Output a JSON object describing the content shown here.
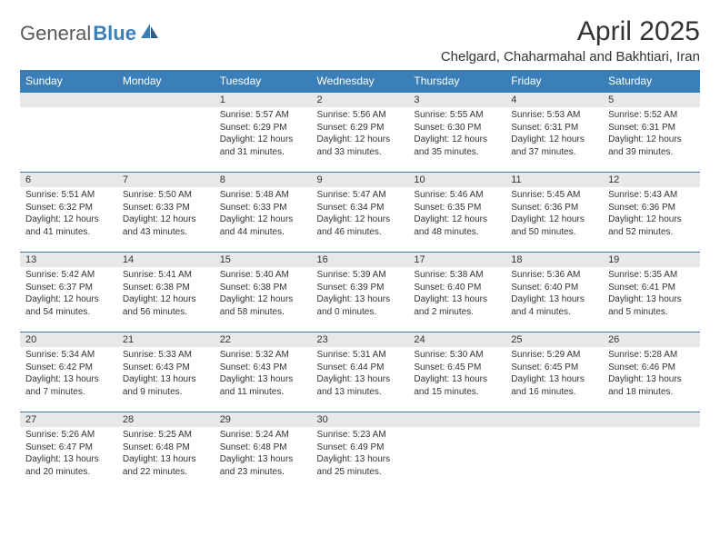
{
  "logo": {
    "part1": "General",
    "part2": "Blue"
  },
  "title": "April 2025",
  "location": "Chelgard, Chaharmahal and Bakhtiari, Iran",
  "colors": {
    "header_bg": "#3b7fb8",
    "header_text": "#ffffff",
    "daynum_bg": "#e8e8e8",
    "border": "#3b7fb8",
    "text": "#333333",
    "logo_gray": "#5a5a5a",
    "logo_blue": "#3b7fb8"
  },
  "day_headers": [
    "Sunday",
    "Monday",
    "Tuesday",
    "Wednesday",
    "Thursday",
    "Friday",
    "Saturday"
  ],
  "weeks": [
    [
      null,
      null,
      {
        "n": "1",
        "sr": "Sunrise: 5:57 AM",
        "ss": "Sunset: 6:29 PM",
        "d1": "Daylight: 12 hours",
        "d2": "and 31 minutes."
      },
      {
        "n": "2",
        "sr": "Sunrise: 5:56 AM",
        "ss": "Sunset: 6:29 PM",
        "d1": "Daylight: 12 hours",
        "d2": "and 33 minutes."
      },
      {
        "n": "3",
        "sr": "Sunrise: 5:55 AM",
        "ss": "Sunset: 6:30 PM",
        "d1": "Daylight: 12 hours",
        "d2": "and 35 minutes."
      },
      {
        "n": "4",
        "sr": "Sunrise: 5:53 AM",
        "ss": "Sunset: 6:31 PM",
        "d1": "Daylight: 12 hours",
        "d2": "and 37 minutes."
      },
      {
        "n": "5",
        "sr": "Sunrise: 5:52 AM",
        "ss": "Sunset: 6:31 PM",
        "d1": "Daylight: 12 hours",
        "d2": "and 39 minutes."
      }
    ],
    [
      {
        "n": "6",
        "sr": "Sunrise: 5:51 AM",
        "ss": "Sunset: 6:32 PM",
        "d1": "Daylight: 12 hours",
        "d2": "and 41 minutes."
      },
      {
        "n": "7",
        "sr": "Sunrise: 5:50 AM",
        "ss": "Sunset: 6:33 PM",
        "d1": "Daylight: 12 hours",
        "d2": "and 43 minutes."
      },
      {
        "n": "8",
        "sr": "Sunrise: 5:48 AM",
        "ss": "Sunset: 6:33 PM",
        "d1": "Daylight: 12 hours",
        "d2": "and 44 minutes."
      },
      {
        "n": "9",
        "sr": "Sunrise: 5:47 AM",
        "ss": "Sunset: 6:34 PM",
        "d1": "Daylight: 12 hours",
        "d2": "and 46 minutes."
      },
      {
        "n": "10",
        "sr": "Sunrise: 5:46 AM",
        "ss": "Sunset: 6:35 PM",
        "d1": "Daylight: 12 hours",
        "d2": "and 48 minutes."
      },
      {
        "n": "11",
        "sr": "Sunrise: 5:45 AM",
        "ss": "Sunset: 6:36 PM",
        "d1": "Daylight: 12 hours",
        "d2": "and 50 minutes."
      },
      {
        "n": "12",
        "sr": "Sunrise: 5:43 AM",
        "ss": "Sunset: 6:36 PM",
        "d1": "Daylight: 12 hours",
        "d2": "and 52 minutes."
      }
    ],
    [
      {
        "n": "13",
        "sr": "Sunrise: 5:42 AM",
        "ss": "Sunset: 6:37 PM",
        "d1": "Daylight: 12 hours",
        "d2": "and 54 minutes."
      },
      {
        "n": "14",
        "sr": "Sunrise: 5:41 AM",
        "ss": "Sunset: 6:38 PM",
        "d1": "Daylight: 12 hours",
        "d2": "and 56 minutes."
      },
      {
        "n": "15",
        "sr": "Sunrise: 5:40 AM",
        "ss": "Sunset: 6:38 PM",
        "d1": "Daylight: 12 hours",
        "d2": "and 58 minutes."
      },
      {
        "n": "16",
        "sr": "Sunrise: 5:39 AM",
        "ss": "Sunset: 6:39 PM",
        "d1": "Daylight: 13 hours",
        "d2": "and 0 minutes."
      },
      {
        "n": "17",
        "sr": "Sunrise: 5:38 AM",
        "ss": "Sunset: 6:40 PM",
        "d1": "Daylight: 13 hours",
        "d2": "and 2 minutes."
      },
      {
        "n": "18",
        "sr": "Sunrise: 5:36 AM",
        "ss": "Sunset: 6:40 PM",
        "d1": "Daylight: 13 hours",
        "d2": "and 4 minutes."
      },
      {
        "n": "19",
        "sr": "Sunrise: 5:35 AM",
        "ss": "Sunset: 6:41 PM",
        "d1": "Daylight: 13 hours",
        "d2": "and 5 minutes."
      }
    ],
    [
      {
        "n": "20",
        "sr": "Sunrise: 5:34 AM",
        "ss": "Sunset: 6:42 PM",
        "d1": "Daylight: 13 hours",
        "d2": "and 7 minutes."
      },
      {
        "n": "21",
        "sr": "Sunrise: 5:33 AM",
        "ss": "Sunset: 6:43 PM",
        "d1": "Daylight: 13 hours",
        "d2": "and 9 minutes."
      },
      {
        "n": "22",
        "sr": "Sunrise: 5:32 AM",
        "ss": "Sunset: 6:43 PM",
        "d1": "Daylight: 13 hours",
        "d2": "and 11 minutes."
      },
      {
        "n": "23",
        "sr": "Sunrise: 5:31 AM",
        "ss": "Sunset: 6:44 PM",
        "d1": "Daylight: 13 hours",
        "d2": "and 13 minutes."
      },
      {
        "n": "24",
        "sr": "Sunrise: 5:30 AM",
        "ss": "Sunset: 6:45 PM",
        "d1": "Daylight: 13 hours",
        "d2": "and 15 minutes."
      },
      {
        "n": "25",
        "sr": "Sunrise: 5:29 AM",
        "ss": "Sunset: 6:45 PM",
        "d1": "Daylight: 13 hours",
        "d2": "and 16 minutes."
      },
      {
        "n": "26",
        "sr": "Sunrise: 5:28 AM",
        "ss": "Sunset: 6:46 PM",
        "d1": "Daylight: 13 hours",
        "d2": "and 18 minutes."
      }
    ],
    [
      {
        "n": "27",
        "sr": "Sunrise: 5:26 AM",
        "ss": "Sunset: 6:47 PM",
        "d1": "Daylight: 13 hours",
        "d2": "and 20 minutes."
      },
      {
        "n": "28",
        "sr": "Sunrise: 5:25 AM",
        "ss": "Sunset: 6:48 PM",
        "d1": "Daylight: 13 hours",
        "d2": "and 22 minutes."
      },
      {
        "n": "29",
        "sr": "Sunrise: 5:24 AM",
        "ss": "Sunset: 6:48 PM",
        "d1": "Daylight: 13 hours",
        "d2": "and 23 minutes."
      },
      {
        "n": "30",
        "sr": "Sunrise: 5:23 AM",
        "ss": "Sunset: 6:49 PM",
        "d1": "Daylight: 13 hours",
        "d2": "and 25 minutes."
      },
      null,
      null,
      null
    ]
  ]
}
